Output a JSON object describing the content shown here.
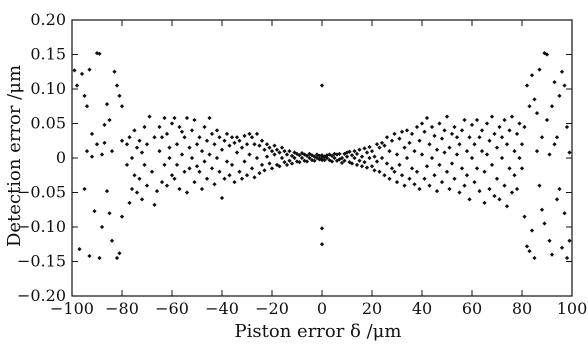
{
  "chart_data": {
    "type": "scatter",
    "xlabel": "Piston error δ /μm",
    "ylabel": "Detection error /μm",
    "xlim": [
      -100,
      100
    ],
    "ylim": [
      -0.2,
      0.2
    ],
    "xticks": [
      -100,
      -80,
      -60,
      -40,
      -20,
      0,
      20,
      40,
      60,
      80,
      100
    ],
    "yticks": [
      -0.2,
      -0.15,
      -0.1,
      -0.05,
      0,
      0.05,
      0.1,
      0.15,
      0.2
    ],
    "xtick_labels": [
      "−100",
      "−80",
      "−60",
      "−40",
      "−20",
      "0",
      "20",
      "40",
      "60",
      "80",
      "100"
    ],
    "ytick_labels": [
      "−0.20",
      "−0.15",
      "−0.10",
      "−0.05",
      "0",
      "0.05",
      "0.10",
      "0.15",
      "0.20"
    ],
    "grid": false,
    "marker_color": "#111111",
    "points": [
      [
        -99,
        0.127
      ],
      [
        -98,
        0.105
      ],
      [
        -97,
        -0.132
      ],
      [
        -96,
        0.122
      ],
      [
        -95,
        0.09
      ],
      [
        -95,
        -0.045
      ],
      [
        -94,
        0.075
      ],
      [
        -94,
        0.01
      ],
      [
        -93,
        0.128
      ],
      [
        -93,
        -0.142
      ],
      [
        -92,
        0.035
      ],
      [
        -92,
        0.002
      ],
      [
        -91,
        -0.077
      ],
      [
        -90,
        0.152
      ],
      [
        -90,
        0.02
      ],
      [
        -89,
        0.151
      ],
      [
        -89,
        -0.145
      ],
      [
        -88,
        0.005
      ],
      [
        -88,
        -0.1
      ],
      [
        -87,
        0.022
      ],
      [
        -87,
        0.048
      ],
      [
        -86,
        0.078
      ],
      [
        -86,
        -0.048
      ],
      [
        -85,
        -0.08
      ],
      [
        -85,
        0.055
      ],
      [
        -84,
        0.01
      ],
      [
        -84,
        -0.12
      ],
      [
        -83,
        0.125
      ],
      [
        -82,
        0.105
      ],
      [
        -82,
        -0.145
      ],
      [
        -81,
        0.09
      ],
      [
        -81,
        -0.138
      ],
      [
        -80,
        0.075
      ],
      [
        -80,
        0.025
      ],
      [
        -80,
        -0.085
      ],
      [
        -78,
        0.02
      ],
      [
        -78,
        -0.01
      ],
      [
        -77,
        0.03
      ],
      [
        -77,
        -0.065
      ],
      [
        -76,
        0.0
      ],
      [
        -76,
        -0.045
      ],
      [
        -75,
        0.04
      ],
      [
        -75,
        -0.025
      ],
      [
        -74,
        0.015
      ],
      [
        -74,
        -0.05
      ],
      [
        -73,
        0.025
      ],
      [
        -73,
        -0.03
      ],
      [
        -72,
        0.008
      ],
      [
        -72,
        -0.06
      ],
      [
        -71,
        -0.01
      ],
      [
        -71,
        0.045
      ],
      [
        -70,
        0.02
      ],
      [
        -70,
        -0.04
      ],
      [
        -69,
        0.06
      ],
      [
        -68,
        -0.02
      ],
      [
        -67,
        0.03
      ],
      [
        -67,
        -0.068
      ],
      [
        -66,
        -0.048
      ],
      [
        -65,
        0.01
      ],
      [
        -65,
        0.045
      ],
      [
        -64,
        0.03
      ],
      [
        -64,
        -0.035
      ],
      [
        -63,
        -0.01
      ],
      [
        -63,
        0.058
      ],
      [
        -62,
        0.035
      ],
      [
        -62,
        -0.04
      ],
      [
        -61,
        0.0
      ],
      [
        -61,
        0.015
      ],
      [
        -60,
        -0.025
      ],
      [
        -60,
        0.05
      ],
      [
        -59,
        0.058
      ],
      [
        -59,
        -0.03
      ],
      [
        -58,
        0.02
      ],
      [
        -58,
        -0.01
      ],
      [
        -57,
        0.045
      ],
      [
        -57,
        -0.045
      ],
      [
        -56,
        0.005
      ],
      [
        -56,
        0.038
      ],
      [
        -55,
        -0.02
      ],
      [
        -55,
        0.03
      ],
      [
        -54,
        0.058
      ],
      [
        -54,
        -0.05
      ],
      [
        -53,
        0.015
      ],
      [
        -53,
        -0.015
      ],
      [
        -52,
        0.04
      ],
      [
        -52,
        0.0
      ],
      [
        -51,
        -0.035
      ],
      [
        -51,
        0.055
      ],
      [
        -50,
        0.02
      ],
      [
        -50,
        -0.012
      ],
      [
        -49,
        0.03
      ],
      [
        -49,
        -0.02
      ],
      [
        -48,
        0.01
      ],
      [
        -48,
        -0.045
      ],
      [
        -47,
        0.045
      ],
      [
        -47,
        -0.005
      ],
      [
        -46,
        0.025
      ],
      [
        -46,
        -0.03
      ],
      [
        -45,
        0.058
      ],
      [
        -45,
        0.005
      ],
      [
        -44,
        -0.015
      ],
      [
        -44,
        0.035
      ],
      [
        -43,
        0.02
      ],
      [
        -43,
        -0.038
      ],
      [
        -42,
        0.0
      ],
      [
        -42,
        0.04
      ],
      [
        -41,
        0.03
      ],
      [
        -41,
        -0.02
      ],
      [
        -40,
        0.012
      ],
      [
        -40,
        -0.058
      ],
      [
        -39,
        0.025
      ],
      [
        -39,
        -0.03
      ],
      [
        -38,
        0.035
      ],
      [
        -38,
        -0.005
      ],
      [
        -37,
        0.018
      ],
      [
        -37,
        -0.025
      ],
      [
        -36,
        0.03
      ],
      [
        -36,
        -0.01
      ],
      [
        -35,
        0.022
      ],
      [
        -35,
        -0.035
      ],
      [
        -34,
        0.008
      ],
      [
        -34,
        0.03
      ],
      [
        -33,
        -0.02
      ],
      [
        -33,
        0.025
      ],
      [
        -32,
        0.015
      ],
      [
        -32,
        -0.03
      ],
      [
        -31,
        0.032
      ],
      [
        -31,
        -0.005
      ],
      [
        -30,
        0.02
      ],
      [
        -30,
        -0.025
      ],
      [
        -29,
        0.035
      ],
      [
        -29,
        0.005
      ],
      [
        -28,
        -0.015
      ],
      [
        -28,
        0.03
      ],
      [
        -27,
        0.02
      ],
      [
        -27,
        -0.028
      ],
      [
        -26,
        0.035
      ],
      [
        -26,
        0.0
      ],
      [
        -25,
        0.018
      ],
      [
        -25,
        -0.022
      ],
      [
        -24,
        0.025
      ],
      [
        -24,
        -0.01
      ],
      [
        -23,
        0.012
      ],
      [
        -23,
        -0.018
      ],
      [
        -22,
        0.02
      ],
      [
        -22,
        0.002
      ],
      [
        -21,
        -0.008
      ],
      [
        -21,
        0.015
      ],
      [
        -20,
        0.01
      ],
      [
        -20,
        -0.015
      ],
      [
        -19,
        0.005
      ],
      [
        -19,
        0.018
      ],
      [
        -18,
        -0.01
      ],
      [
        -18,
        0.012
      ],
      [
        -17,
        0.008
      ],
      [
        -17,
        -0.012
      ],
      [
        -16,
        0.0
      ],
      [
        -16,
        0.015
      ],
      [
        -15,
        -0.006
      ],
      [
        -15,
        0.01
      ],
      [
        -14,
        0.005
      ],
      [
        -14,
        -0.01
      ],
      [
        -13,
        0.01
      ],
      [
        -13,
        -0.004
      ],
      [
        -12,
        0.003
      ],
      [
        -12,
        -0.008
      ],
      [
        -11,
        0.008
      ],
      [
        -11,
        0.0
      ],
      [
        -10,
        -0.005
      ],
      [
        -10,
        0.006
      ],
      [
        -9,
        0.004
      ],
      [
        -9,
        -0.006
      ],
      [
        -8,
        0.007
      ],
      [
        -8,
        0.0
      ],
      [
        -7,
        -0.004
      ],
      [
        -7,
        0.005
      ],
      [
        -6,
        0.003
      ],
      [
        -6,
        -0.005
      ],
      [
        -5,
        0.006
      ],
      [
        -5,
        0.0
      ],
      [
        -4,
        -0.003
      ],
      [
        -4,
        0.004
      ],
      [
        -3,
        0.002
      ],
      [
        -3,
        -0.004
      ],
      [
        -2,
        0.005
      ],
      [
        -2,
        0.0
      ],
      [
        -1,
        -0.002
      ],
      [
        -1,
        0.003
      ],
      [
        0,
        0.105
      ],
      [
        0,
        -0.102
      ],
      [
        0,
        -0.125
      ],
      [
        0,
        0.0
      ],
      [
        0,
        0.004
      ],
      [
        0,
        -0.003
      ],
      [
        1,
        0.002
      ],
      [
        1,
        -0.003
      ],
      [
        2,
        0.004
      ],
      [
        2,
        0.0
      ],
      [
        3,
        -0.003
      ],
      [
        3,
        0.005
      ],
      [
        4,
        0.003
      ],
      [
        4,
        -0.005
      ],
      [
        5,
        0.006
      ],
      [
        5,
        0.0
      ],
      [
        6,
        -0.004
      ],
      [
        6,
        0.005
      ],
      [
        7,
        0.006
      ],
      [
        7,
        -0.002
      ],
      [
        8,
        0.0
      ],
      [
        8,
        -0.007
      ],
      [
        9,
        0.006
      ],
      [
        9,
        -0.004
      ],
      [
        10,
        0.008
      ],
      [
        10,
        0.002
      ],
      [
        11,
        -0.006
      ],
      [
        11,
        0.009
      ],
      [
        12,
        0.004
      ],
      [
        12,
        -0.008
      ],
      [
        13,
        0.01
      ],
      [
        13,
        0.0
      ],
      [
        14,
        -0.01
      ],
      [
        14,
        0.006
      ],
      [
        15,
        0.012
      ],
      [
        15,
        -0.004
      ],
      [
        16,
        0.002
      ],
      [
        16,
        -0.012
      ],
      [
        17,
        0.014
      ],
      [
        17,
        -0.006
      ],
      [
        18,
        0.008
      ],
      [
        18,
        -0.014
      ],
      [
        19,
        0.016
      ],
      [
        19,
        0.0
      ],
      [
        20,
        -0.012
      ],
      [
        20,
        0.01
      ],
      [
        21,
        0.002
      ],
      [
        21,
        -0.018
      ],
      [
        22,
        0.02
      ],
      [
        22,
        -0.005
      ],
      [
        23,
        0.015
      ],
      [
        23,
        -0.02
      ],
      [
        24,
        0.022
      ],
      [
        24,
        0.0
      ],
      [
        25,
        -0.025
      ],
      [
        25,
        0.018
      ],
      [
        26,
        0.03
      ],
      [
        26,
        -0.008
      ],
      [
        27,
        0.01
      ],
      [
        27,
        -0.03
      ],
      [
        28,
        0.025
      ],
      [
        28,
        -0.015
      ],
      [
        29,
        0.035
      ],
      [
        29,
        -0.02
      ],
      [
        30,
        0.005
      ],
      [
        30,
        -0.035
      ],
      [
        31,
        0.028
      ],
      [
        31,
        -0.01
      ],
      [
        32,
        0.038
      ],
      [
        32,
        -0.025
      ],
      [
        33,
        0.015
      ],
      [
        33,
        -0.04
      ],
      [
        34,
        0.04
      ],
      [
        34,
        0.0
      ],
      [
        35,
        -0.03
      ],
      [
        35,
        0.022
      ],
      [
        36,
        0.035
      ],
      [
        36,
        -0.015
      ],
      [
        37,
        0.01
      ],
      [
        37,
        -0.038
      ],
      [
        38,
        0.045
      ],
      [
        38,
        -0.02
      ],
      [
        39,
        0.025
      ],
      [
        39,
        -0.045
      ],
      [
        40,
        0.05
      ],
      [
        40,
        0.005
      ],
      [
        41,
        -0.03
      ],
      [
        41,
        0.038
      ],
      [
        42,
        0.058
      ],
      [
        42,
        -0.012
      ],
      [
        43,
        0.02
      ],
      [
        43,
        -0.04
      ],
      [
        44,
        0.045
      ],
      [
        44,
        0.0
      ],
      [
        45,
        -0.025
      ],
      [
        45,
        0.032
      ],
      [
        46,
        0.012
      ],
      [
        46,
        -0.048
      ],
      [
        47,
        0.05
      ],
      [
        47,
        -0.01
      ],
      [
        48,
        0.028
      ],
      [
        48,
        -0.035
      ],
      [
        49,
        0.04
      ],
      [
        49,
        0.008
      ],
      [
        50,
        -0.02
      ],
      [
        50,
        0.06
      ],
      [
        51,
        0.015
      ],
      [
        51,
        -0.045
      ],
      [
        52,
        0.035
      ],
      [
        52,
        -0.008
      ],
      [
        53,
        0.045
      ],
      [
        53,
        -0.03
      ],
      [
        54,
        0.005
      ],
      [
        54,
        0.03
      ],
      [
        55,
        -0.05
      ],
      [
        55,
        0.02
      ],
      [
        56,
        0.04
      ],
      [
        56,
        -0.015
      ],
      [
        57,
        -0.04
      ],
      [
        57,
        0.055
      ],
      [
        58,
        0.01
      ],
      [
        58,
        -0.025
      ],
      [
        59,
        0.03
      ],
      [
        59,
        -0.06
      ],
      [
        60,
        0.048
      ],
      [
        60,
        0.0
      ],
      [
        61,
        -0.035
      ],
      [
        61,
        0.02
      ],
      [
        62,
        0.055
      ],
      [
        62,
        -0.015
      ],
      [
        63,
        0.03
      ],
      [
        63,
        -0.048
      ],
      [
        64,
        0.01
      ],
      [
        64,
        0.04
      ],
      [
        65,
        -0.065
      ],
      [
        65,
        -0.02
      ],
      [
        66,
        0.05
      ],
      [
        66,
        0.005
      ],
      [
        67,
        -0.045
      ],
      [
        67,
        0.025
      ],
      [
        68,
        0.06
      ],
      [
        68,
        -0.01
      ],
      [
        69,
        -0.055
      ],
      [
        69,
        0.035
      ],
      [
        70,
        0.015
      ],
      [
        70,
        -0.03
      ],
      [
        71,
        0.045
      ],
      [
        71,
        -0.06
      ],
      [
        72,
        0.0
      ],
      [
        72,
        0.03
      ],
      [
        73,
        -0.04
      ],
      [
        73,
        0.055
      ],
      [
        74,
        0.02
      ],
      [
        74,
        -0.07
      ],
      [
        75,
        -0.015
      ],
      [
        75,
        0.04
      ],
      [
        76,
        0.06
      ],
      [
        76,
        -0.05
      ],
      [
        77,
        0.01
      ],
      [
        77,
        -0.025
      ],
      [
        78,
        0.035
      ],
      [
        78,
        -0.045
      ],
      [
        79,
        0.05
      ],
      [
        79,
        0.0
      ],
      [
        80,
        0.02
      ],
      [
        80,
        -0.015
      ],
      [
        81,
        -0.085
      ],
      [
        81,
        0.045
      ],
      [
        82,
        0.105
      ],
      [
        82,
        -0.128
      ],
      [
        83,
        0.075
      ],
      [
        83,
        -0.135
      ],
      [
        84,
        0.12
      ],
      [
        84,
        -0.105
      ],
      [
        85,
        0.085
      ],
      [
        85,
        -0.145
      ],
      [
        86,
        0.01
      ],
      [
        86,
        0.065
      ],
      [
        87,
        0.128
      ],
      [
        87,
        -0.04
      ],
      [
        88,
        0.03
      ],
      [
        88,
        -0.075
      ],
      [
        89,
        0.152
      ],
      [
        89,
        -0.095
      ],
      [
        90,
        0.15
      ],
      [
        90,
        0.055
      ],
      [
        91,
        0.005
      ],
      [
        91,
        -0.12
      ],
      [
        92,
        0.075
      ],
      [
        92,
        -0.14
      ],
      [
        93,
        0.11
      ],
      [
        93,
        0.02
      ],
      [
        94,
        -0.06
      ],
      [
        94,
        0.03
      ],
      [
        95,
        0.09
      ],
      [
        95,
        -0.045
      ],
      [
        96,
        0.125
      ],
      [
        96,
        -0.13
      ],
      [
        97,
        0.105
      ],
      [
        97,
        -0.08
      ],
      [
        98,
        0.045
      ],
      [
        98,
        -0.145
      ],
      [
        99,
        -0.12
      ],
      [
        99,
        0.008
      ]
    ]
  }
}
